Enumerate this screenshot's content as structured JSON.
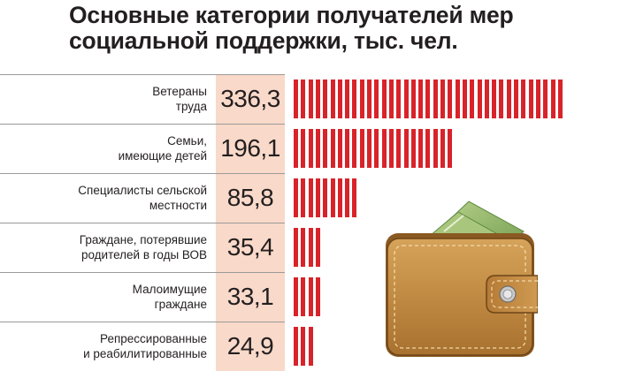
{
  "chart_data": {
    "type": "bar",
    "title": "Основные категории получателей мер\nсоциальной поддержки, тыс. чел.",
    "categories": [
      "Ветераны\nтруда",
      "Семьи,\nимеющие детей",
      "Специалисты сельской\nместности",
      "Граждане, потерявшие\nродителей в годы ВОВ",
      "Малоимущие\nграждане",
      "Репрессированные\nи реабилитированные"
    ],
    "values": [
      336.3,
      196.1,
      85.8,
      35.4,
      33.1,
      24.9
    ],
    "value_labels": [
      "336,3",
      "196,1",
      "85,8",
      "35,4",
      "33,1",
      "24,9"
    ],
    "orientation": "horizontal",
    "bar_color": "#d8232a",
    "band_color": "#f9d9c9"
  }
}
